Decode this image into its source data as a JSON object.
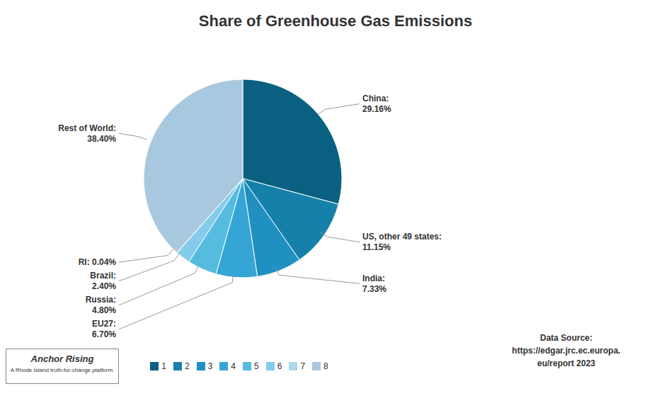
{
  "chart_data": {
    "type": "pie",
    "title": "Share of Greenhouse Gas Emissions",
    "categories": [
      "1",
      "2",
      "3",
      "4",
      "5",
      "6",
      "7",
      "8"
    ],
    "values": [
      29.16,
      11.15,
      7.33,
      6.7,
      4.8,
      2.4,
      0.04,
      38.4
    ],
    "value_labels": [
      "China:\n29.16%",
      "US, other 49 states:\n11.15%",
      "India:\n7.33%",
      "EU27:\n6.70%",
      "Russia:\n4.80%",
      "Brazil:\n2.40%",
      "RI: 0.04%",
      "Rest of World:\n38.40%"
    ],
    "colors": [
      "#0a6080",
      "#1580aa",
      "#2090c0",
      "#35a5d5",
      "#55bce0",
      "#85ccec",
      "#b0d8ec",
      "#a8c8df"
    ],
    "data_labels": true,
    "legend": "bottom",
    "annotations": [
      "Data Source:\nhttps://edgar.jrc.ec.europa.\neu/report 2023",
      "Anchor Rising",
      "A Rhode Island truth-for-change platform."
    ]
  }
}
